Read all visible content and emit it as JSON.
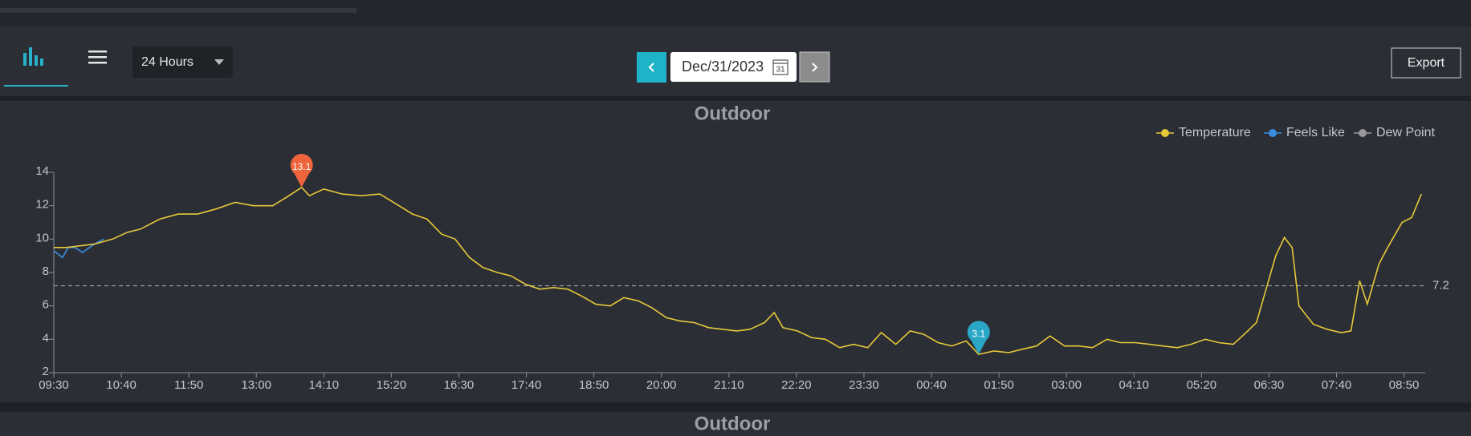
{
  "toolbar": {
    "range": "24 Hours",
    "date": "Dec/31/2023",
    "calendar_day": "31",
    "export": "Export"
  },
  "chart_data": {
    "type": "line",
    "title": "Outdoor",
    "x": [
      0,
      13,
      42,
      61,
      76,
      90,
      110,
      129,
      149,
      168,
      188,
      207,
      227,
      241,
      257,
      265,
      280,
      299,
      319,
      338,
      358,
      372,
      387,
      402,
      416,
      431,
      445,
      460,
      474,
      489,
      504,
      518,
      533,
      547,
      562,
      577,
      591,
      606,
      620,
      635,
      649,
      664,
      679,
      693,
      708,
      722,
      737,
      747,
      756,
      771,
      786,
      800,
      815,
      829,
      844,
      858,
      873,
      888,
      902,
      917,
      931,
      946,
      959,
      975,
      990,
      1004,
      1019,
      1033,
      1048,
      1063,
      1077,
      1092,
      1106,
      1121,
      1136,
      1150,
      1165,
      1179,
      1194,
      1208,
      1223,
      1238,
      1247,
      1257,
      1267,
      1276,
      1284,
      1291,
      1306,
      1320,
      1335,
      1345,
      1354,
      1362,
      1374,
      1383,
      1398,
      1408,
      1418
    ],
    "xlim": [
      0,
      1422
    ],
    "xticks": [
      {
        "value": 0,
        "label": "09:30"
      },
      {
        "value": 70,
        "label": "10:40"
      },
      {
        "value": 140,
        "label": "11:50"
      },
      {
        "value": 210,
        "label": "13:00"
      },
      {
        "value": 280,
        "label": "14:10"
      },
      {
        "value": 350,
        "label": "15:20"
      },
      {
        "value": 420,
        "label": "16:30"
      },
      {
        "value": 490,
        "label": "17:40"
      },
      {
        "value": 560,
        "label": "18:50"
      },
      {
        "value": 630,
        "label": "20:00"
      },
      {
        "value": 700,
        "label": "21:10"
      },
      {
        "value": 770,
        "label": "22:20"
      },
      {
        "value": 840,
        "label": "23:30"
      },
      {
        "value": 910,
        "label": "00:40"
      },
      {
        "value": 980,
        "label": "01:50"
      },
      {
        "value": 1050,
        "label": "03:00"
      },
      {
        "value": 1120,
        "label": "04:10"
      },
      {
        "value": 1190,
        "label": "05:20"
      },
      {
        "value": 1260,
        "label": "06:30"
      },
      {
        "value": 1330,
        "label": "07:40"
      },
      {
        "value": 1400,
        "label": "08:50"
      }
    ],
    "ylim": [
      2,
      14
    ],
    "yticks": [
      2,
      4,
      6,
      8,
      10,
      12,
      14
    ],
    "legend": "top-right",
    "series": [
      {
        "name": "Temperature",
        "color": "#e8c93a",
        "values": [
          9.5,
          9.5,
          9.7,
          10.0,
          10.4,
          10.6,
          11.2,
          11.5,
          11.5,
          11.8,
          12.2,
          12.0,
          12.0,
          12.5,
          13.1,
          12.6,
          13.0,
          12.7,
          12.6,
          12.7,
          12.0,
          11.5,
          11.2,
          10.3,
          10.0,
          8.9,
          8.3,
          8.0,
          7.8,
          7.3,
          7.0,
          7.1,
          7.0,
          6.6,
          6.1,
          6.0,
          6.5,
          6.3,
          5.9,
          5.3,
          5.1,
          5.0,
          4.7,
          4.6,
          4.5,
          4.6,
          5.0,
          5.6,
          4.7,
          4.5,
          4.1,
          4.0,
          3.5,
          3.7,
          3.5,
          4.4,
          3.7,
          4.5,
          4.3,
          3.8,
          3.6,
          3.9,
          3.1,
          3.3,
          3.2,
          3.4,
          3.6,
          4.2,
          3.6,
          3.6,
          3.5,
          4.0,
          3.8,
          3.8,
          3.7,
          3.6,
          3.5,
          3.7,
          4.0,
          3.8,
          3.7,
          4.5,
          5.0,
          7.0,
          9.0,
          10.1,
          9.5,
          6.0,
          4.9,
          4.6,
          4.4,
          4.5,
          7.5,
          6.1,
          8.5,
          9.5,
          11.0,
          11.3,
          12.7
        ]
      },
      {
        "name": "Feels Like",
        "color": "#3b8fe0",
        "x": [
          0,
          9,
          15,
          22,
          30,
          37,
          42,
          52
        ],
        "values": [
          9.3,
          8.9,
          9.5,
          9.5,
          9.2,
          9.5,
          9.7,
          10.0
        ]
      },
      {
        "name": "Dew Point",
        "color": "#9a9a9a",
        "x": [],
        "values": []
      }
    ],
    "average": 7.2,
    "max_marker": {
      "x": 257,
      "value": 13.1,
      "color": "#f0643c"
    },
    "min_marker": {
      "x": 959,
      "value": 3.1,
      "color": "#2aa7c7"
    }
  },
  "next_panel": {
    "title": "Outdoor"
  }
}
